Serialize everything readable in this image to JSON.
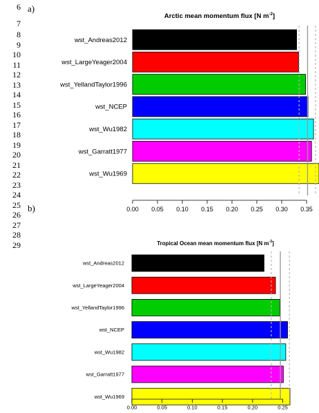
{
  "line_numbers": [
    "6",
    "7",
    "8",
    "9",
    "10",
    "11",
    "12",
    "13",
    "14",
    "15",
    "16",
    "17",
    "18",
    "19",
    "20",
    "21",
    "22",
    "23",
    "24",
    "25",
    "26",
    "27",
    "28",
    "29"
  ],
  "panels": [
    {
      "label": "a)"
    },
    {
      "label": "b)"
    }
  ],
  "chart_data": [
    {
      "type": "bar",
      "orientation": "horizontal",
      "title": "Arctic mean momentum flux",
      "unit": "[N m",
      "unit_exp": "-2",
      "unit_close": "]",
      "categories": [
        "wst_Andreas2012",
        "wst_LargeYeager2004",
        "wst_YellandTaylor1996",
        "wst_NCEP",
        "wst_Wu1982",
        "wst_Garratt1977",
        "wst_Wu1969"
      ],
      "values": [
        0.33,
        0.334,
        0.348,
        0.353,
        0.364,
        0.36,
        0.375
      ],
      "colors": [
        "#000000",
        "#ff0000",
        "#00cc00",
        "#0000ff",
        "#00ffff",
        "#ff00ff",
        "#ffff00"
      ],
      "xlim": [
        0,
        0.375
      ],
      "xticks": [
        "0.00",
        "0.05",
        "0.10",
        "0.15",
        "0.20",
        "0.25",
        "0.30",
        "0.35"
      ],
      "xtick_values": [
        0,
        0.05,
        0.1,
        0.15,
        0.2,
        0.25,
        0.3,
        0.35
      ],
      "mean_line": 0.352,
      "bound_lines": [
        0.335,
        0.368
      ]
    },
    {
      "type": "bar",
      "orientation": "horizontal",
      "title": "Tropical Ocean mean momentum flux",
      "unit": "[N m",
      "unit_exp": "-2",
      "unit_close": "]",
      "categories": [
        "wst_Andreas2012",
        "wst_LargeYeager2004",
        "wst_YellandTaylor1996",
        "wst_NCEP",
        "wst_Wu1982",
        "wst_Garratt1977",
        "wst_Wu1969"
      ],
      "values": [
        0.219,
        0.238,
        0.245,
        0.258,
        0.255,
        0.251,
        0.262
      ],
      "colors": [
        "#000000",
        "#ff0000",
        "#00cc00",
        "#0000ff",
        "#00ffff",
        "#ff00ff",
        "#ffff00"
      ],
      "xlim": [
        0,
        0.262
      ],
      "xticks": [
        "0.00",
        "0.05",
        "0.10",
        "0.15",
        "0.20",
        "0.25"
      ],
      "xtick_values": [
        0,
        0.05,
        0.1,
        0.15,
        0.2,
        0.25
      ],
      "mean_line": 0.246,
      "bound_lines": [
        0.231,
        0.261
      ]
    }
  ]
}
